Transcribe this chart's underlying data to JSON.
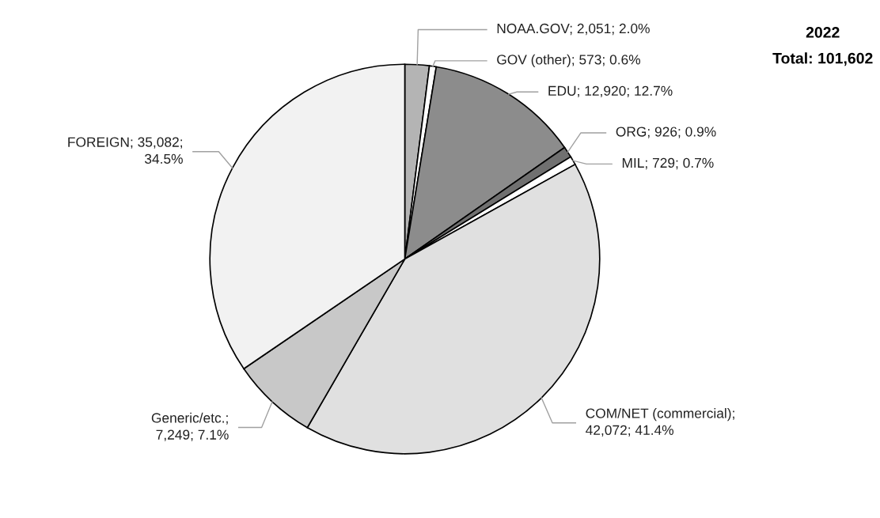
{
  "chart_data": {
    "type": "pie",
    "title": "2022",
    "subtitle": "Total: 101,602",
    "categories": [
      "NOAA.GOV",
      "GOV (other)",
      "EDU",
      "ORG",
      "MIL",
      "COM/NET (commercial)",
      "Generic/etc.",
      "FOREIGN"
    ],
    "values": [
      2051,
      573,
      12920,
      926,
      729,
      42072,
      7249,
      35082
    ],
    "value_labels": [
      "; 2,051; 2.0%",
      "; 573; 0.6%",
      "; 12,920; 12.7%",
      "; 926; 0.9%",
      "; 729; 0.7%",
      ";\n42,072; 41.4%",
      ";\n7,249; 7.1%",
      "; 35,082;\n34.5%"
    ],
    "colors": [
      "#b4b4b4",
      "#ffffff",
      "#8c8c8c",
      "#707070",
      "#ffffff",
      "#e0e0e0",
      "#c8c8c8",
      "#f2f2f2"
    ],
    "legend": false
  }
}
